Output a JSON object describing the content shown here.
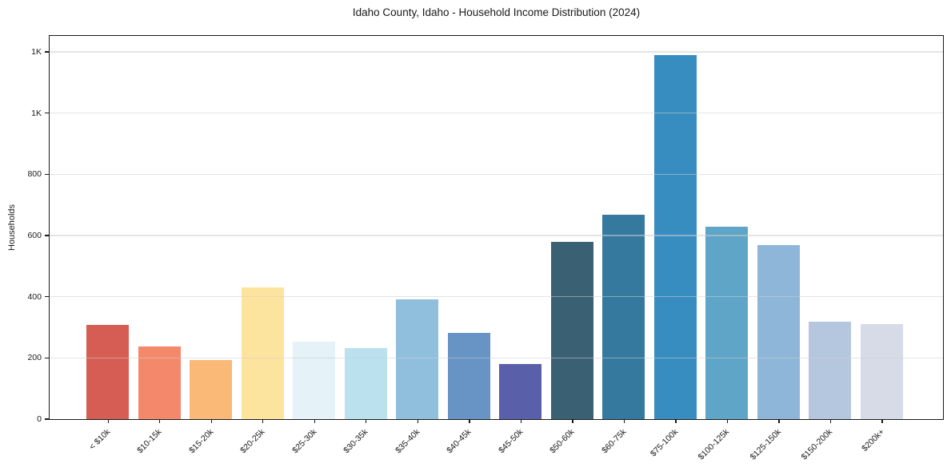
{
  "chart_data": {
    "type": "bar",
    "title": "Idaho County, Idaho - Household Income Distribution (2024)",
    "xlabel": "",
    "ylabel": "Households",
    "categories": [
      "< $10k",
      "$10-15k",
      "$15-20k",
      "$20-25k",
      "$25-30k",
      "$30-35k",
      "$35-40k",
      "$40-45k",
      "$45-50k",
      "$50-60k",
      "$60-75k",
      "$75-100k",
      "$100-125k",
      "$125-150k",
      "$150-200k",
      "$200k+"
    ],
    "values": [
      307,
      238,
      193,
      431,
      252,
      232,
      390,
      281,
      180,
      579,
      667,
      1190,
      628,
      568,
      317,
      310
    ],
    "bar_colors": [
      "#d65d53",
      "#f4886a",
      "#fbb978",
      "#fde49e",
      "#e5f2f7",
      "#bce1ee",
      "#90bfde",
      "#6793c5",
      "#5a5fa9",
      "#3a6073",
      "#35799e",
      "#388dc0",
      "#5fa5c8",
      "#8db6d8",
      "#b5c7df",
      "#d7dae7"
    ],
    "ylim": [
      0,
      1252
    ],
    "yticks": [
      {
        "value": 0,
        "label": "0"
      },
      {
        "value": 200,
        "label": "200"
      },
      {
        "value": 400,
        "label": "400"
      },
      {
        "value": 600,
        "label": "600"
      },
      {
        "value": 800,
        "label": "800"
      },
      {
        "value": 1000,
        "label": "1K"
      },
      {
        "value": 1200,
        "label": "1K"
      }
    ],
    "grid": "horizontal",
    "legend": "none",
    "plot_border_color": "#1a1a1a",
    "background_color": "#ffffff"
  }
}
